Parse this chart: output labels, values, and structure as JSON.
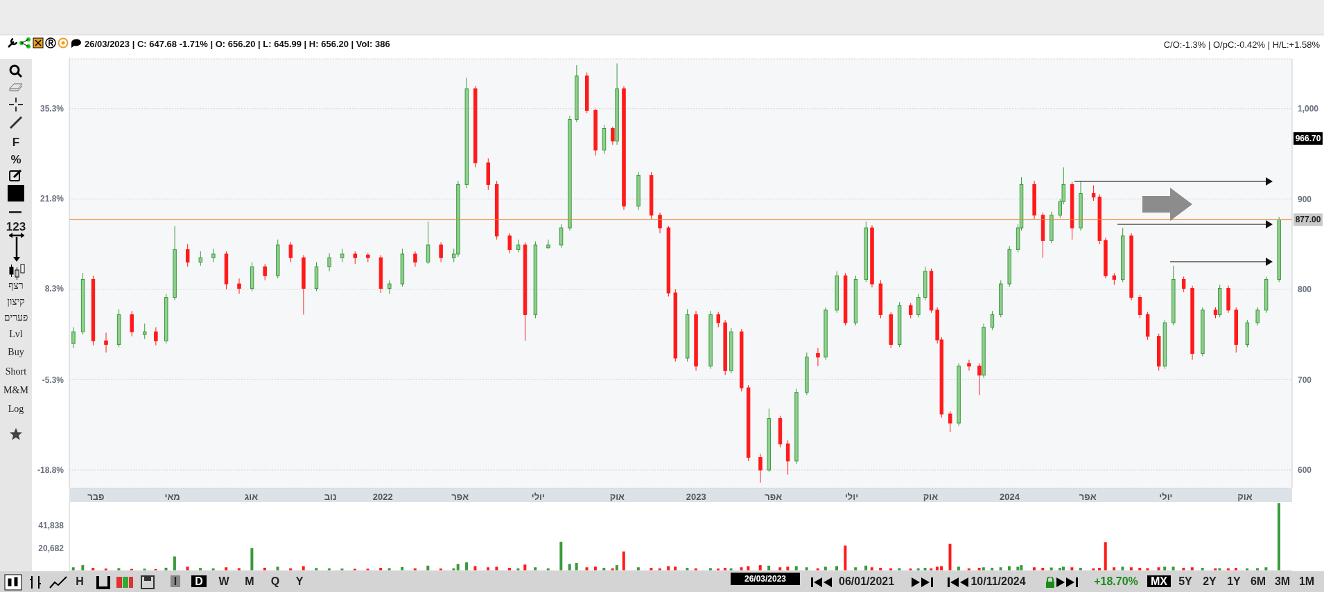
{
  "chart_data": [
    {
      "type": "candlestick",
      "x": [
        "2021-01-06",
        "2021-01-17",
        "2021-01-29",
        "2021-02-13",
        "2021-02-28",
        "2021-03-15",
        "2021-03-30",
        "2021-04-12",
        "2021-04-24",
        "2021-05-04",
        "2021-05-19",
        "2021-06-03",
        "2021-06-18",
        "2021-07-03",
        "2021-07-18",
        "2021-08-02",
        "2021-08-17",
        "2021-09-01",
        "2021-09-16",
        "2021-10-01",
        "2021-10-16",
        "2021-10-31",
        "2021-11-15",
        "2021-11-30",
        "2021-12-15",
        "2021-12-30",
        "2022-01-09",
        "2022-01-24",
        "2022-02-08",
        "2022-02-23",
        "2022-03-10",
        "2022-03-25",
        "2022-03-30",
        "2022-04-09",
        "2022-04-19",
        "2022-05-04",
        "2022-05-14",
        "2022-05-29",
        "2022-06-08",
        "2022-06-16",
        "2022-06-28",
        "2022-07-13",
        "2022-07-28",
        "2022-08-07",
        "2022-08-15",
        "2022-08-27",
        "2022-09-06",
        "2022-09-16",
        "2022-09-26",
        "2022-10-01",
        "2022-10-09",
        "2022-10-26",
        "2022-11-10",
        "2022-11-20",
        "2022-11-30",
        "2022-12-08",
        "2022-12-22",
        "2023-01-01",
        "2023-01-18",
        "2023-01-27",
        "2023-02-04",
        "2023-02-11",
        "2023-02-23",
        "2023-03-03",
        "2023-03-17",
        "2023-03-27",
        "2023-04-09",
        "2023-04-18",
        "2023-04-28",
        "2023-05-10",
        "2023-05-23",
        "2023-06-01",
        "2023-06-14",
        "2023-06-24",
        "2023-07-06",
        "2023-07-18",
        "2023-07-25",
        "2023-08-04",
        "2023-08-16",
        "2023-08-26",
        "2023-09-08",
        "2023-09-17",
        "2023-09-25",
        "2023-10-02",
        "2023-10-09",
        "2023-10-14",
        "2023-10-24",
        "2023-11-03",
        "2023-11-15",
        "2023-11-27",
        "2023-12-02",
        "2023-12-12",
        "2023-12-22",
        "2024-01-01",
        "2024-01-11",
        "2024-01-15",
        "2024-01-30",
        "2024-02-09",
        "2024-02-19",
        "2024-02-29",
        "2024-03-04",
        "2024-03-14",
        "2024-03-24",
        "2024-04-08",
        "2024-04-15",
        "2024-04-22",
        "2024-05-02",
        "2024-05-12",
        "2024-05-22",
        "2024-06-01",
        "2024-06-10",
        "2024-06-23",
        "2024-06-30",
        "2024-07-10",
        "2024-07-22",
        "2024-08-01",
        "2024-08-13",
        "2024-08-28",
        "2024-09-02",
        "2024-09-12",
        "2024-09-21",
        "2024-10-04",
        "2024-10-16",
        "2024-10-26",
        "2024-11-10"
      ],
      "ohlc": [
        [
          740,
          758,
          735,
          753
        ],
        [
          753,
          818,
          750,
          811
        ],
        [
          811,
          815,
          738,
          743
        ],
        [
          743,
          752,
          730,
          739
        ],
        [
          739,
          778,
          736,
          772
        ],
        [
          772,
          776,
          748,
          753
        ],
        [
          750,
          762,
          745,
          753
        ],
        [
          753,
          758,
          738,
          743
        ],
        [
          743,
          795,
          740,
          791
        ],
        [
          791,
          870,
          788,
          844
        ],
        [
          844,
          850,
          825,
          830
        ],
        [
          830,
          842,
          826,
          835
        ],
        [
          835,
          845,
          830,
          839
        ],
        [
          839,
          842,
          800,
          806
        ],
        [
          806,
          812,
          795,
          801
        ],
        [
          801,
          830,
          798,
          825
        ],
        [
          825,
          828,
          810,
          815
        ],
        [
          815,
          855,
          812,
          849
        ],
        [
          849,
          852,
          830,
          835
        ],
        [
          835,
          838,
          772,
          801
        ],
        [
          801,
          830,
          798,
          825
        ],
        [
          825,
          840,
          820,
          835
        ],
        [
          835,
          845,
          830,
          839
        ],
        [
          839,
          842,
          828,
          835
        ],
        [
          838,
          840,
          830,
          835
        ],
        [
          835,
          838,
          796,
          801
        ],
        [
          801,
          810,
          795,
          806
        ],
        [
          806,
          845,
          803,
          839
        ],
        [
          839,
          842,
          825,
          830
        ],
        [
          830,
          875,
          828,
          849
        ],
        [
          849,
          852,
          830,
          835
        ],
        [
          835,
          845,
          830,
          839
        ],
        [
          839,
          920,
          836,
          916
        ],
        [
          916,
          1034,
          912,
          1022
        ],
        [
          1022,
          1025,
          935,
          940
        ],
        [
          940,
          945,
          910,
          916
        ],
        [
          916,
          920,
          855,
          859
        ],
        [
          859,
          862,
          840,
          844
        ],
        [
          844,
          855,
          841,
          849
        ],
        [
          849,
          852,
          743,
          772
        ],
        [
          772,
          853,
          768,
          849
        ],
        [
          846,
          855,
          845,
          849
        ],
        [
          849,
          872,
          846,
          868
        ],
        [
          868,
          992,
          865,
          988
        ],
        [
          988,
          1048,
          985,
          1036
        ],
        [
          1036,
          1040,
          995,
          998
        ],
        [
          998,
          1000,
          948,
          954
        ],
        [
          954,
          982,
          950,
          978
        ],
        [
          978,
          980,
          960,
          964
        ],
        [
          964,
          1050,
          960,
          1022
        ],
        [
          1022,
          1025,
          888,
          892
        ],
        [
          892,
          930,
          888,
          926
        ],
        [
          926,
          930,
          878,
          882
        ],
        [
          882,
          885,
          862,
          868
        ],
        [
          868,
          870,
          792,
          796
        ],
        [
          796,
          800,
          720,
          724
        ],
        [
          724,
          778,
          720,
          772
        ],
        [
          772,
          776,
          710,
          715
        ],
        [
          715,
          776,
          712,
          772
        ],
        [
          772,
          775,
          758,
          763
        ],
        [
          763,
          766,
          705,
          710
        ],
        [
          710,
          757,
          707,
          753
        ],
        [
          753,
          756,
          687,
          691
        ],
        [
          691,
          694,
          610,
          614
        ],
        [
          614,
          618,
          586,
          600
        ],
        [
          600,
          668,
          598,
          657
        ],
        [
          657,
          660,
          625,
          629
        ],
        [
          629,
          633,
          595,
          610
        ],
        [
          610,
          690,
          607,
          686
        ],
        [
          686,
          730,
          683,
          725
        ],
        [
          729,
          735,
          715,
          725
        ],
        [
          725,
          780,
          722,
          777
        ],
        [
          777,
          820,
          774,
          815
        ],
        [
          815,
          818,
          760,
          763
        ],
        [
          763,
          815,
          760,
          811
        ],
        [
          811,
          875,
          808,
          868
        ],
        [
          868,
          871,
          802,
          806
        ],
        [
          806,
          810,
          768,
          772
        ],
        [
          772,
          775,
          735,
          739
        ],
        [
          739,
          786,
          736,
          782
        ],
        [
          782,
          785,
          768,
          772
        ],
        [
          772,
          795,
          769,
          791
        ],
        [
          791,
          825,
          788,
          820
        ],
        [
          820,
          823,
          774,
          777
        ],
        [
          777,
          780,
          740,
          744
        ],
        [
          744,
          747,
          658,
          662
        ],
        [
          662,
          665,
          642,
          652
        ],
        [
          652,
          718,
          649,
          715
        ],
        [
          718,
          722,
          710,
          715
        ],
        [
          715,
          718,
          683,
          705
        ],
        [
          705,
          762,
          702,
          758
        ],
        [
          758,
          776,
          755,
          772
        ],
        [
          772,
          810,
          769,
          806
        ],
        [
          806,
          848,
          803,
          844
        ],
        [
          844,
          872,
          841,
          868
        ],
        [
          868,
          924,
          865,
          916
        ],
        [
          916,
          920,
          878,
          882
        ],
        [
          882,
          885,
          835,
          854
        ],
        [
          854,
          886,
          851,
          882
        ],
        [
          882,
          900,
          879,
          897
        ],
        [
          897,
          935,
          894,
          916
        ],
        [
          916,
          919,
          855,
          868
        ],
        [
          868,
          920,
          865,
          906
        ],
        [
          906,
          915,
          898,
          902
        ],
        [
          902,
          905,
          850,
          854
        ],
        [
          854,
          857,
          812,
          815
        ],
        [
          815,
          818,
          805,
          811
        ],
        [
          811,
          868,
          808,
          859
        ],
        [
          859,
          862,
          788,
          791
        ],
        [
          791,
          794,
          768,
          772
        ],
        [
          772,
          775,
          744,
          748
        ],
        [
          748,
          751,
          710,
          715
        ],
        [
          715,
          766,
          712,
          763
        ],
        [
          763,
          826,
          760,
          811
        ],
        [
          811,
          814,
          797,
          801
        ],
        [
          801,
          804,
          722,
          729
        ],
        [
          729,
          780,
          726,
          777
        ],
        [
          777,
          780,
          768,
          772
        ],
        [
          772,
          805,
          769,
          801
        ],
        [
          801,
          804,
          774,
          777
        ],
        [
          777,
          780,
          730,
          739
        ],
        [
          739,
          766,
          736,
          763
        ],
        [
          763,
          780,
          760,
          777
        ],
        [
          777,
          814,
          774,
          811
        ],
        [
          811,
          880,
          808,
          877
        ]
      ],
      "xlim": [
        "2021-01-01",
        "2024-11-25"
      ],
      "xticks": [
        {
          "value": "2021-02-01",
          "label": "פבר"
        },
        {
          "value": "2021-05-01",
          "label": "מאי"
        },
        {
          "value": "2021-08-01",
          "label": "אוג"
        },
        {
          "value": "2021-11-01",
          "label": "נוב"
        },
        {
          "value": "2022-01-01",
          "label": "2022"
        },
        {
          "value": "2022-04-01",
          "label": "אפר"
        },
        {
          "value": "2022-07-01",
          "label": "יולי"
        },
        {
          "value": "2022-10-01",
          "label": "אוק"
        },
        {
          "value": "2023-01-01",
          "label": "2023"
        },
        {
          "value": "2023-04-01",
          "label": "אפר"
        },
        {
          "value": "2023-07-01",
          "label": "יולי"
        },
        {
          "value": "2023-10-01",
          "label": "אוק"
        },
        {
          "value": "2024-01-01",
          "label": "2024"
        },
        {
          "value": "2024-04-01",
          "label": "אפר"
        },
        {
          "value": "2024-07-01",
          "label": "יולי"
        },
        {
          "value": "2024-10-01",
          "label": "אוק"
        }
      ],
      "ylim": [
        580,
        1055
      ],
      "yticks": [
        600,
        700,
        800,
        900,
        {
          "value": 1000,
          "label": "1,000"
        }
      ],
      "y2lim": [
        -21.5,
        42.7
      ],
      "y2ticks": [
        {
          "value": -18.8,
          "label": "-18.8%"
        },
        {
          "value": -5.3,
          "label": "-5.3%"
        },
        {
          "value": 8.3,
          "label": "8.3%"
        },
        {
          "value": 21.8,
          "label": "21.8%"
        },
        {
          "value": 35.3,
          "label": "35.3%"
        }
      ],
      "grid": "y",
      "ref_lines": [
        {
          "axis": "y",
          "value": 877,
          "label": "877.00",
          "color": "#e8872e"
        }
      ],
      "annotations": [
        "26/03/2023 | C: 647.68 -1.71% | O: 656.20 | L: 645.99 | H: 656.20 | Vol: 386",
        "C/O:-1.3% | O/pC:-0.42% | H/L:+1.58%",
        "26/03/2023",
        "F",
        "%",
        "123",
        "רצף",
        "קיצון",
        "פערים",
        "Lvl",
        "Buy",
        "Short",
        "M&M",
        "Log",
        "H",
        "I",
        "D",
        "W",
        "M",
        "Q",
        "Y",
        "06/01/2021",
        "10/11/2024",
        "+18.70%",
        "MX",
        "5Y",
        "2Y",
        "1Y",
        "6M",
        "3M",
        "1M",
        "966.70"
      ]
    },
    {
      "type": "bar",
      "x": [
        "2021-01-06",
        "2021-01-17",
        "2021-01-29",
        "2021-02-13",
        "2021-02-28",
        "2021-03-15",
        "2021-03-30",
        "2021-04-12",
        "2021-04-24",
        "2021-05-04",
        "2021-05-19",
        "2021-06-03",
        "2021-06-18",
        "2021-07-03",
        "2021-07-18",
        "2021-08-02",
        "2021-08-17",
        "2021-09-01",
        "2021-09-16",
        "2021-10-01",
        "2021-10-16",
        "2021-10-31",
        "2021-11-15",
        "2021-11-30",
        "2021-12-15",
        "2021-12-30",
        "2022-01-09",
        "2022-01-24",
        "2022-02-08",
        "2022-02-23",
        "2022-03-10",
        "2022-03-25",
        "2022-03-30",
        "2022-04-09",
        "2022-04-19",
        "2022-05-04",
        "2022-05-14",
        "2022-05-29",
        "2022-06-08",
        "2022-06-16",
        "2022-06-28",
        "2022-07-13",
        "2022-07-28",
        "2022-08-07",
        "2022-08-15",
        "2022-08-27",
        "2022-09-06",
        "2022-09-16",
        "2022-09-26",
        "2022-10-01",
        "2022-10-09",
        "2022-10-26",
        "2022-11-10",
        "2022-11-20",
        "2022-11-30",
        "2022-12-08",
        "2022-12-22",
        "2023-01-01",
        "2023-01-18",
        "2023-01-27",
        "2023-02-04",
        "2023-02-11",
        "2023-02-23",
        "2023-03-03",
        "2023-03-17",
        "2023-03-27",
        "2023-04-09",
        "2023-04-18",
        "2023-04-28",
        "2023-05-10",
        "2023-05-23",
        "2023-06-01",
        "2023-06-14",
        "2023-06-24",
        "2023-07-06",
        "2023-07-18",
        "2023-07-25",
        "2023-08-04",
        "2023-08-16",
        "2023-08-26",
        "2023-09-08",
        "2023-09-17",
        "2023-09-25",
        "2023-10-02",
        "2023-10-09",
        "2023-10-14",
        "2023-10-24",
        "2023-11-03",
        "2023-11-15",
        "2023-11-27",
        "2023-12-02",
        "2023-12-12",
        "2023-12-22",
        "2024-01-01",
        "2024-01-11",
        "2024-01-15",
        "2024-01-30",
        "2024-02-09",
        "2024-02-19",
        "2024-02-29",
        "2024-03-04",
        "2024-03-14",
        "2024-03-24",
        "2024-04-08",
        "2024-04-15",
        "2024-04-22",
        "2024-05-02",
        "2024-05-12",
        "2024-05-22",
        "2024-06-01",
        "2024-06-10",
        "2024-06-23",
        "2024-06-30",
        "2024-07-10",
        "2024-07-22",
        "2024-08-01",
        "2024-08-13",
        "2024-08-28",
        "2024-09-02",
        "2024-09-12",
        "2024-09-21",
        "2024-10-04",
        "2024-10-16",
        "2024-10-26",
        "2024-11-10"
      ],
      "values": [
        3000,
        5000,
        2500,
        1800,
        2200,
        1500,
        1700,
        1400,
        2600,
        13000,
        3500,
        2400,
        2000,
        3000,
        2200,
        20700,
        2600,
        3500,
        2000,
        4000,
        2400,
        2000,
        1800,
        1600,
        1700,
        2500,
        2200,
        3200,
        2000,
        4500,
        1800,
        2000,
        6000,
        7500,
        4000,
        3000,
        3500,
        2500,
        2000,
        5500,
        3000,
        2000,
        26300,
        6000,
        7000,
        3000,
        3500,
        2500,
        2000,
        5000,
        17500,
        3000,
        2500,
        2000,
        4000,
        3500,
        2500,
        2000,
        2200,
        1800,
        2500,
        2000,
        3000,
        4000,
        5000,
        4500,
        3000,
        3500,
        4000,
        3000,
        2000,
        3500,
        4000,
        23000,
        3000,
        4500,
        3000,
        2500,
        2000,
        2200,
        1800,
        2000,
        2500,
        2000,
        3500,
        4000,
        24500,
        3500,
        2000,
        2500,
        3000,
        2500,
        3000,
        4000,
        3500,
        5000,
        3000,
        2500,
        2800,
        2400,
        3500,
        3000,
        2500,
        2000,
        2500,
        26000,
        3000,
        3500,
        3000,
        2500,
        2200,
        3000,
        3500,
        3500,
        2500,
        3000,
        2500,
        2000,
        2200,
        2000,
        2500,
        2000,
        2200,
        3000,
        62000
      ],
      "xlim": [
        "2021-01-01",
        "2024-11-25"
      ],
      "ylim": [
        0,
        63000
      ],
      "yticks": [
        {
          "value": 20682,
          "label": "20,682"
        },
        {
          "value": 41838,
          "label": "41,838"
        }
      ],
      "tick_labels": "y"
    }
  ]
}
